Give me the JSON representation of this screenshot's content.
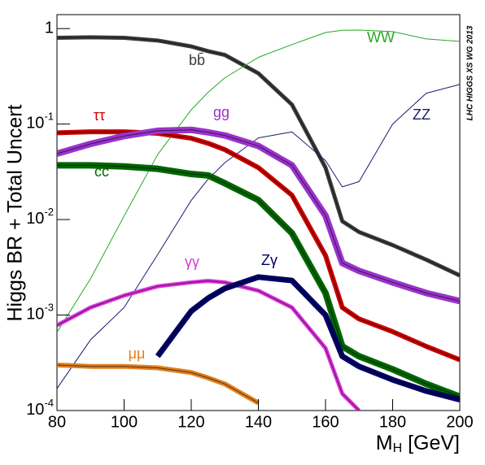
{
  "chart_data": {
    "type": "line",
    "log_y": true,
    "y_label": "Higgs BR + Total Uncert",
    "x_label": "MH [GeV]",
    "annotation": "LHC HIGGS XS WG 2013",
    "x": [
      80,
      90,
      100,
      110,
      120,
      125,
      130,
      140,
      150,
      160,
      165,
      170,
      180,
      190,
      200
    ],
    "xlim": [
      80,
      200
    ],
    "xticks": [
      80,
      100,
      120,
      140,
      160,
      180,
      200
    ],
    "ylim": [
      0.0001,
      1.4
    ],
    "yticks": [
      {
        "value": 0.0001,
        "label": "10-4"
      },
      {
        "value": 0.001,
        "label": "10-3"
      },
      {
        "value": 0.01,
        "label": "10-2"
      },
      {
        "value": 0.1,
        "label": "10-1"
      },
      1
    ],
    "series": [
      {
        "name": "bb̄",
        "color": "#3c3c3c",
        "values": [
          0.8,
          0.81,
          0.8,
          0.75,
          0.65,
          0.58,
          0.53,
          0.34,
          0.16,
          0.035,
          0.0096,
          0.0074,
          0.0054,
          0.0038,
          0.0026
        ]
      },
      {
        "name": "WW",
        "color": "#22aa22",
        "values": [
          0.00066,
          0.0024,
          0.0109,
          0.048,
          0.141,
          0.215,
          0.305,
          0.5,
          0.68,
          0.91,
          0.96,
          0.965,
          0.93,
          0.78,
          0.735
        ]
      },
      {
        "name": "ZZ",
        "color": "#1a1a6e",
        "values": [
          0.00017,
          0.00055,
          0.0012,
          0.0043,
          0.0159,
          0.0264,
          0.0394,
          0.0717,
          0.0828,
          0.0415,
          0.022,
          0.025,
          0.1,
          0.21,
          0.26
        ]
      },
      {
        "name": "ττ",
        "color": "#cc0000",
        "values": [
          0.081,
          0.083,
          0.083,
          0.08,
          0.071,
          0.063,
          0.054,
          0.035,
          0.018,
          0.0042,
          0.0012,
          0.00091,
          0.00067,
          0.00047,
          0.00034
        ]
      },
      {
        "name": "gg",
        "color": "#9933cc",
        "values": [
          0.049,
          0.062,
          0.075,
          0.085,
          0.087,
          0.082,
          0.076,
          0.059,
          0.037,
          0.011,
          0.0035,
          0.0029,
          0.0022,
          0.0017,
          0.0014
        ]
      },
      {
        "name": "cc̄",
        "color": "#006600",
        "values": [
          0.037,
          0.037,
          0.036,
          0.034,
          0.03,
          0.029,
          0.024,
          0.016,
          0.0072,
          0.0017,
          0.00047,
          0.00037,
          0.00027,
          0.00019,
          0.00014
        ]
      },
      {
        "name": "γγ",
        "color": "#dd33dd",
        "values": [
          0.00078,
          0.0012,
          0.0016,
          0.002,
          0.0022,
          0.00228,
          0.0022,
          0.0018,
          0.0012,
          0.00045,
          0.00015,
          0.0001,
          null,
          null,
          null
        ]
      },
      {
        "name": "Zγ",
        "color": "#000066",
        "values": [
          null,
          null,
          null,
          0.00037,
          0.0011,
          0.0015,
          0.0019,
          0.0025,
          0.0023,
          0.001,
          0.00037,
          0.00029,
          0.00021,
          0.00016,
          0.00013
        ]
      },
      {
        "name": "μμ",
        "color": "#e08020",
        "values": [
          0.0003,
          0.00029,
          0.00029,
          0.00028,
          0.00025,
          0.00022,
          0.00019,
          0.00012,
          null,
          null,
          null,
          null,
          null,
          null,
          null
        ]
      }
    ]
  }
}
